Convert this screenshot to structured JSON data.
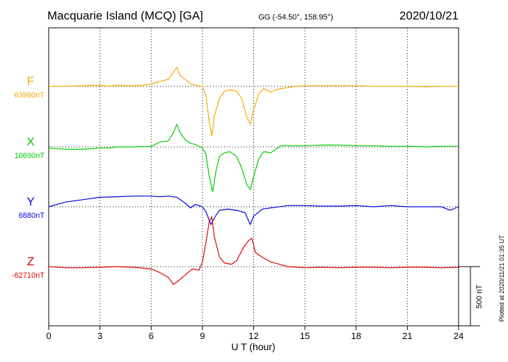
{
  "header": {
    "station": "Macquarie Island (MCQ)  [GA]",
    "coords": "GG (-54.50°, 158.95°)",
    "date": "2020/10/21"
  },
  "footer": {
    "plotted": "Plotted at 2020/11/21 01:35 UT"
  },
  "chart_data": {
    "type": "line",
    "xlabel": "U T (hour)",
    "xlim": [
      0,
      24
    ],
    "xticks": [
      0,
      3,
      6,
      9,
      12,
      15,
      18,
      21,
      24
    ],
    "scale_bar_label": "500 nT",
    "series": [
      {
        "name": "F",
        "baseline_label": "63990nT",
        "color": "#f5a800",
        "points": [
          [
            0,
            0
          ],
          [
            1,
            0
          ],
          [
            2,
            5
          ],
          [
            3,
            10
          ],
          [
            3.5,
            0
          ],
          [
            4,
            10
          ],
          [
            4.5,
            5
          ],
          [
            5,
            5
          ],
          [
            5.5,
            10
          ],
          [
            6,
            20
          ],
          [
            6.5,
            40
          ],
          [
            7,
            60
          ],
          [
            7.3,
            120
          ],
          [
            7.5,
            160
          ],
          [
            7.7,
            90
          ],
          [
            8,
            60
          ],
          [
            8.3,
            20
          ],
          [
            8.6,
            10
          ],
          [
            9,
            0
          ],
          [
            9.2,
            -80
          ],
          [
            9.4,
            -300
          ],
          [
            9.55,
            -420
          ],
          [
            9.7,
            -250
          ],
          [
            10,
            -100
          ],
          [
            10.3,
            -40
          ],
          [
            10.6,
            -30
          ],
          [
            11,
            -40
          ],
          [
            11.3,
            -100
          ],
          [
            11.6,
            -260
          ],
          [
            11.8,
            -320
          ],
          [
            12,
            -200
          ],
          [
            12.3,
            -60
          ],
          [
            12.6,
            -20
          ],
          [
            13,
            -50
          ],
          [
            13.3,
            -30
          ],
          [
            13.6,
            -20
          ],
          [
            14,
            -10
          ],
          [
            14.5,
            0
          ],
          [
            15,
            5
          ],
          [
            16,
            5
          ],
          [
            17,
            5
          ],
          [
            18,
            5
          ],
          [
            19,
            0
          ],
          [
            20,
            0
          ],
          [
            21,
            0
          ],
          [
            22,
            -5
          ],
          [
            23,
            0
          ],
          [
            23.5,
            0
          ],
          [
            24,
            0
          ]
        ]
      },
      {
        "name": "X",
        "baseline_label": "10690nT",
        "color": "#00cc00",
        "points": [
          [
            0,
            -10
          ],
          [
            1,
            -20
          ],
          [
            2,
            -20
          ],
          [
            3,
            -10
          ],
          [
            3.5,
            -10
          ],
          [
            4,
            0
          ],
          [
            5,
            0
          ],
          [
            6,
            5
          ],
          [
            6.5,
            40
          ],
          [
            7,
            50
          ],
          [
            7.3,
            120
          ],
          [
            7.5,
            190
          ],
          [
            7.7,
            120
          ],
          [
            8,
            60
          ],
          [
            8.3,
            30
          ],
          [
            8.6,
            20
          ],
          [
            9,
            -10
          ],
          [
            9.2,
            -60
          ],
          [
            9.4,
            -250
          ],
          [
            9.6,
            -380
          ],
          [
            9.8,
            -200
          ],
          [
            10,
            -80
          ],
          [
            10.3,
            -50
          ],
          [
            10.6,
            -40
          ],
          [
            11,
            -80
          ],
          [
            11.3,
            -180
          ],
          [
            11.6,
            -320
          ],
          [
            11.8,
            -360
          ],
          [
            12,
            -250
          ],
          [
            12.3,
            -100
          ],
          [
            12.6,
            -40
          ],
          [
            13,
            -50
          ],
          [
            13.3,
            -20
          ],
          [
            13.6,
            10
          ],
          [
            14,
            10
          ],
          [
            14.5,
            10
          ],
          [
            15,
            10
          ],
          [
            16,
            15
          ],
          [
            17,
            15
          ],
          [
            18,
            10
          ],
          [
            19,
            10
          ],
          [
            20,
            5
          ],
          [
            21,
            5
          ],
          [
            22,
            0
          ],
          [
            23,
            5
          ],
          [
            24,
            5
          ]
        ]
      },
      {
        "name": "Y",
        "baseline_label": "6880nT",
        "color": "#0000dd",
        "points": [
          [
            0,
            0
          ],
          [
            0.5,
            20
          ],
          [
            1,
            40
          ],
          [
            2,
            60
          ],
          [
            3,
            80
          ],
          [
            4,
            85
          ],
          [
            5,
            90
          ],
          [
            6,
            90
          ],
          [
            6.5,
            85
          ],
          [
            7,
            90
          ],
          [
            7.5,
            80
          ],
          [
            8,
            30
          ],
          [
            8.3,
            -10
          ],
          [
            8.6,
            20
          ],
          [
            9,
            0
          ],
          [
            9.2,
            -40
          ],
          [
            9.5,
            -150
          ],
          [
            9.8,
            -70
          ],
          [
            10,
            -30
          ],
          [
            10.5,
            -20
          ],
          [
            11,
            -30
          ],
          [
            11.5,
            -50
          ],
          [
            11.8,
            -150
          ],
          [
            12,
            -80
          ],
          [
            12.5,
            -20
          ],
          [
            13,
            -10
          ],
          [
            14,
            10
          ],
          [
            15,
            10
          ],
          [
            16,
            5
          ],
          [
            17,
            5
          ],
          [
            18,
            10
          ],
          [
            19,
            0
          ],
          [
            20,
            10
          ],
          [
            21,
            0
          ],
          [
            22,
            0
          ],
          [
            23,
            0
          ],
          [
            23.5,
            -30
          ],
          [
            24,
            0
          ]
        ]
      },
      {
        "name": "Z",
        "baseline_label": "-62710nT",
        "color": "#dd0000",
        "points": [
          [
            0,
            0
          ],
          [
            1,
            -10
          ],
          [
            2,
            -10
          ],
          [
            3,
            -5
          ],
          [
            4,
            0
          ],
          [
            5,
            -5
          ],
          [
            6,
            -20
          ],
          [
            6.5,
            -50
          ],
          [
            7,
            -90
          ],
          [
            7.3,
            -150
          ],
          [
            7.5,
            -130
          ],
          [
            8,
            -70
          ],
          [
            8.4,
            -20
          ],
          [
            8.8,
            -30
          ],
          [
            9,
            40
          ],
          [
            9.2,
            200
          ],
          [
            9.4,
            380
          ],
          [
            9.55,
            420
          ],
          [
            9.7,
            250
          ],
          [
            10,
            80
          ],
          [
            10.3,
            30
          ],
          [
            10.7,
            20
          ],
          [
            11,
            50
          ],
          [
            11.4,
            160
          ],
          [
            11.7,
            220
          ],
          [
            11.9,
            240
          ],
          [
            12.1,
            120
          ],
          [
            12.5,
            80
          ],
          [
            13,
            40
          ],
          [
            13.5,
            20
          ],
          [
            14,
            0
          ],
          [
            15,
            -10
          ],
          [
            16,
            -5
          ],
          [
            17,
            -10
          ],
          [
            18,
            -5
          ],
          [
            19,
            -5
          ],
          [
            20,
            -10
          ],
          [
            21,
            -5
          ],
          [
            22,
            -5
          ],
          [
            23,
            -10
          ],
          [
            24,
            -5
          ]
        ]
      }
    ]
  }
}
